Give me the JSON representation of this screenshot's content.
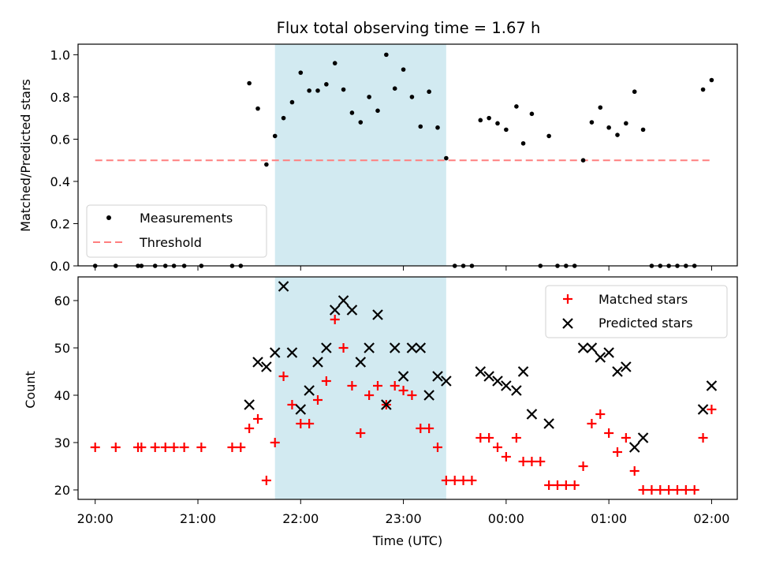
{
  "chart_data": [
    {
      "type": "scatter",
      "title": "Flux total observing time = 1.67 h",
      "xlabel": "",
      "ylabel": "Matched/Predicted stars",
      "xlim": [
        "19:50",
        "02:15"
      ],
      "ylim": [
        0,
        1.05
      ],
      "yticks": [
        "0.0",
        "0.2",
        "0.4",
        "0.6",
        "0.8",
        "1.0"
      ],
      "highlight_span": [
        "21:45",
        "23:25"
      ],
      "highlight_color": "#add8e6",
      "threshold": 0.5,
      "legend": {
        "position": "lower-left",
        "entries": [
          "Measurements",
          "Threshold"
        ]
      },
      "series": [
        {
          "name": "Measurements",
          "color": "#000000",
          "marker": "dot",
          "points": [
            [
              "20:00",
              0
            ],
            [
              "20:12",
              0
            ],
            [
              "20:25",
              0
            ],
            [
              "20:27",
              0
            ],
            [
              "20:35",
              0
            ],
            [
              "20:41",
              0
            ],
            [
              "20:46",
              0
            ],
            [
              "20:52",
              0
            ],
            [
              "21:02",
              0
            ],
            [
              "21:20",
              0
            ],
            [
              "21:25",
              0
            ],
            [
              "21:30",
              0.865
            ],
            [
              "21:35",
              0.745
            ],
            [
              "21:40",
              0.48
            ],
            [
              "21:45",
              0.615
            ],
            [
              "21:50",
              0.7
            ],
            [
              "21:55",
              0.775
            ],
            [
              "22:00",
              0.915
            ],
            [
              "22:05",
              0.83
            ],
            [
              "22:10",
              0.83
            ],
            [
              "22:15",
              0.86
            ],
            [
              "22:20",
              0.96
            ],
            [
              "22:25",
              0.835
            ],
            [
              "22:30",
              0.725
            ],
            [
              "22:35",
              0.68
            ],
            [
              "22:40",
              0.8
            ],
            [
              "22:45",
              0.735
            ],
            [
              "22:50",
              1.0
            ],
            [
              "22:55",
              0.84
            ],
            [
              "23:00",
              0.93
            ],
            [
              "23:05",
              0.8
            ],
            [
              "23:10",
              0.66
            ],
            [
              "23:15",
              0.825
            ],
            [
              "23:20",
              0.655
            ],
            [
              "23:25",
              0.51
            ],
            [
              "23:30",
              0
            ],
            [
              "23:35",
              0
            ],
            [
              "23:40",
              0
            ],
            [
              "23:45",
              0.69
            ],
            [
              "23:50",
              0.7
            ],
            [
              "23:55",
              0.675
            ],
            [
              "00:00",
              0.645
            ],
            [
              "00:06",
              0.755
            ],
            [
              "00:10",
              0.58
            ],
            [
              "00:15",
              0.72
            ],
            [
              "00:20",
              0
            ],
            [
              "00:25",
              0.615
            ],
            [
              "00:30",
              0
            ],
            [
              "00:35",
              0
            ],
            [
              "00:40",
              0
            ],
            [
              "00:45",
              0.5
            ],
            [
              "00:50",
              0.68
            ],
            [
              "00:55",
              0.75
            ],
            [
              "01:00",
              0.655
            ],
            [
              "01:05",
              0.62
            ],
            [
              "01:10",
              0.675
            ],
            [
              "01:15",
              0.825
            ],
            [
              "01:20",
              0.645
            ],
            [
              "01:25",
              0
            ],
            [
              "01:30",
              0
            ],
            [
              "01:35",
              0
            ],
            [
              "01:40",
              0
            ],
            [
              "01:45",
              0
            ],
            [
              "01:50",
              0
            ],
            [
              "01:55",
              0.835
            ],
            [
              "02:00",
              0.88
            ]
          ]
        },
        {
          "name": "Threshold",
          "color": "#ff7f7f",
          "style": "dashed",
          "x": [
            "20:00",
            "01:59"
          ],
          "y": [
            0.5,
            0.5
          ]
        }
      ]
    },
    {
      "type": "scatter",
      "title": "",
      "xlabel": "Time (UTC)",
      "ylabel": "Count",
      "xlim": [
        "19:50",
        "02:15"
      ],
      "ylim": [
        18,
        65
      ],
      "yticks": [
        "20",
        "30",
        "40",
        "50",
        "60"
      ],
      "xticks": [
        "20:00",
        "21:00",
        "22:00",
        "23:00",
        "00:00",
        "01:00",
        "02:00"
      ],
      "highlight_span": [
        "21:45",
        "23:25"
      ],
      "highlight_color": "#add8e6",
      "legend": {
        "position": "top-right",
        "entries": [
          "Matched stars",
          "Predicted stars"
        ]
      },
      "series": [
        {
          "name": "Matched stars",
          "color": "#ff0000",
          "marker": "plus",
          "points": [
            [
              "20:00",
              29
            ],
            [
              "20:12",
              29
            ],
            [
              "20:25",
              29
            ],
            [
              "20:27",
              29
            ],
            [
              "20:35",
              29
            ],
            [
              "20:41",
              29
            ],
            [
              "20:46",
              29
            ],
            [
              "20:52",
              29
            ],
            [
              "21:02",
              29
            ],
            [
              "21:20",
              29
            ],
            [
              "21:25",
              29
            ],
            [
              "21:30",
              33
            ],
            [
              "21:35",
              35
            ],
            [
              "21:40",
              22
            ],
            [
              "21:45",
              30
            ],
            [
              "21:50",
              44
            ],
            [
              "21:55",
              38
            ],
            [
              "22:00",
              34
            ],
            [
              "22:05",
              34
            ],
            [
              "22:10",
              39
            ],
            [
              "22:15",
              43
            ],
            [
              "22:20",
              56
            ],
            [
              "22:25",
              50
            ],
            [
              "22:30",
              42
            ],
            [
              "22:35",
              32
            ],
            [
              "22:40",
              40
            ],
            [
              "22:45",
              42
            ],
            [
              "22:50",
              38
            ],
            [
              "22:55",
              42
            ],
            [
              "23:00",
              41
            ],
            [
              "23:05",
              40
            ],
            [
              "23:10",
              33
            ],
            [
              "23:15",
              33
            ],
            [
              "23:20",
              29
            ],
            [
              "23:25",
              22
            ],
            [
              "23:30",
              22
            ],
            [
              "23:35",
              22
            ],
            [
              "23:40",
              22
            ],
            [
              "23:45",
              31
            ],
            [
              "23:50",
              31
            ],
            [
              "23:55",
              29
            ],
            [
              "00:00",
              27
            ],
            [
              "00:06",
              31
            ],
            [
              "00:10",
              26
            ],
            [
              "00:15",
              26
            ],
            [
              "00:20",
              26
            ],
            [
              "00:25",
              21
            ],
            [
              "00:30",
              21
            ],
            [
              "00:35",
              21
            ],
            [
              "00:40",
              21
            ],
            [
              "00:45",
              25
            ],
            [
              "00:50",
              34
            ],
            [
              "00:55",
              36
            ],
            [
              "01:00",
              32
            ],
            [
              "01:05",
              28
            ],
            [
              "01:10",
              31
            ],
            [
              "01:15",
              24
            ],
            [
              "01:20",
              20
            ],
            [
              "01:25",
              20
            ],
            [
              "01:30",
              20
            ],
            [
              "01:35",
              20
            ],
            [
              "01:40",
              20
            ],
            [
              "01:45",
              20
            ],
            [
              "01:50",
              20
            ],
            [
              "01:55",
              31
            ],
            [
              "02:00",
              37
            ]
          ]
        },
        {
          "name": "Predicted stars",
          "color": "#000000",
          "marker": "x",
          "points": [
            [
              "21:30",
              38
            ],
            [
              "21:35",
              47
            ],
            [
              "21:40",
              46
            ],
            [
              "21:45",
              49
            ],
            [
              "21:50",
              63
            ],
            [
              "21:55",
              49
            ],
            [
              "22:00",
              37
            ],
            [
              "22:05",
              41
            ],
            [
              "22:10",
              47
            ],
            [
              "22:15",
              50
            ],
            [
              "22:20",
              58
            ],
            [
              "22:25",
              60
            ],
            [
              "22:30",
              58
            ],
            [
              "22:35",
              47
            ],
            [
              "22:40",
              50
            ],
            [
              "22:45",
              57
            ],
            [
              "22:50",
              38
            ],
            [
              "22:55",
              50
            ],
            [
              "23:00",
              44
            ],
            [
              "23:05",
              50
            ],
            [
              "23:10",
              50
            ],
            [
              "23:15",
              40
            ],
            [
              "23:20",
              44
            ],
            [
              "23:25",
              43
            ],
            [
              "23:45",
              45
            ],
            [
              "23:50",
              44
            ],
            [
              "23:55",
              43
            ],
            [
              "00:00",
              42
            ],
            [
              "00:06",
              41
            ],
            [
              "00:10",
              45
            ],
            [
              "00:15",
              36
            ],
            [
              "00:25",
              34
            ],
            [
              "00:45",
              50
            ],
            [
              "00:50",
              50
            ],
            [
              "00:55",
              48
            ],
            [
              "01:00",
              49
            ],
            [
              "01:05",
              45
            ],
            [
              "01:10",
              46
            ],
            [
              "01:15",
              29
            ],
            [
              "01:20",
              31
            ],
            [
              "01:55",
              37
            ],
            [
              "02:00",
              42
            ]
          ]
        }
      ]
    }
  ]
}
